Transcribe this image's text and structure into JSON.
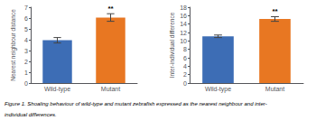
{
  "chart_data": [
    {
      "type": "bar",
      "y_label": "Nearest neighbour distance",
      "categories": [
        "Wild-type",
        "Mutant"
      ],
      "values": [
        3.95,
        6.05
      ],
      "errors": [
        0.25,
        0.35
      ],
      "colors": [
        "#3d6db5",
        "#e87722"
      ],
      "ylim": [
        0,
        7
      ],
      "yticks": [
        0,
        1,
        2,
        3,
        4,
        5,
        6,
        7
      ],
      "grid": false,
      "annotations": [
        {
          "text": "**",
          "x": "Mutant"
        }
      ]
    },
    {
      "type": "bar",
      "y_label": "Inter-individual difference",
      "categories": [
        "Wild-type",
        "Mutant"
      ],
      "values": [
        11.1,
        15.2
      ],
      "errors": [
        0.3,
        0.55
      ],
      "colors": [
        "#3d6db5",
        "#e87722"
      ],
      "ylim": [
        0,
        18
      ],
      "yticks": [
        0,
        2,
        4,
        6,
        8,
        10,
        12,
        14,
        16,
        18
      ],
      "grid": false,
      "annotations": [
        {
          "text": "**",
          "x": "Mutant"
        }
      ]
    }
  ],
  "caption": [
    "Figure 1. Shoaling behaviour of wild-type and mutant zebrafish expressed as the nearest neighbour and inter-",
    "individual differences."
  ]
}
